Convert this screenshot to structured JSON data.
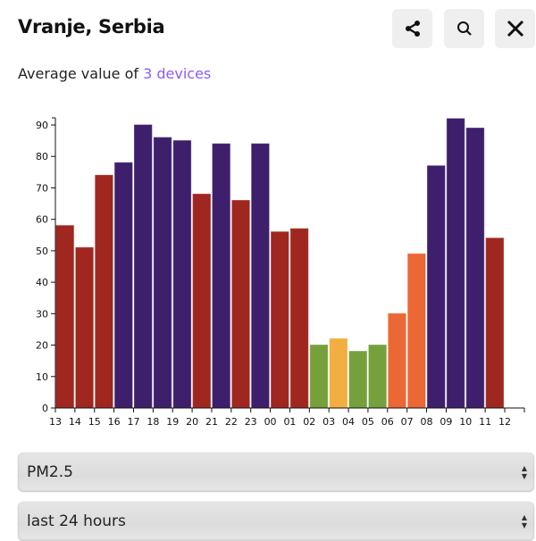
{
  "header": {
    "title": "Vranje, Serbia",
    "subtitle_prefix": "Average value of ",
    "devices_link": "3 devices"
  },
  "buttons": {
    "share": "share-icon",
    "search": "search-icon",
    "close": "close-icon"
  },
  "selects": {
    "pollutant": "PM2.5",
    "period": "last 24 hours"
  },
  "colors": {
    "red": "#a0271f",
    "purple": "#3e1f6c",
    "green": "#76a03c",
    "yellow": "#f2ae40",
    "orange": "#eb6834",
    "link": "#8a5cf6"
  },
  "chart_data": {
    "type": "bar",
    "categories": [
      "13",
      "14",
      "15",
      "16",
      "17",
      "18",
      "19",
      "20",
      "21",
      "22",
      "23",
      "00",
      "01",
      "02",
      "03",
      "04",
      "05",
      "06",
      "07",
      "08",
      "09",
      "10",
      "11"
    ],
    "x_tick_labels": [
      "13",
      "14",
      "15",
      "16",
      "17",
      "18",
      "19",
      "20",
      "21",
      "22",
      "23",
      "00",
      "01",
      "02",
      "03",
      "04",
      "05",
      "06",
      "07",
      "08",
      "09",
      "10",
      "11",
      "12"
    ],
    "values": [
      58,
      51,
      74,
      78,
      90,
      86,
      85,
      68,
      84,
      66,
      84,
      56,
      57,
      20,
      22,
      18,
      20,
      30,
      49,
      77,
      92,
      89,
      54
    ],
    "bar_colors": [
      "red",
      "red",
      "red",
      "purple",
      "purple",
      "purple",
      "purple",
      "red",
      "purple",
      "red",
      "purple",
      "red",
      "red",
      "green",
      "yellow",
      "green",
      "green",
      "orange",
      "orange",
      "purple",
      "purple",
      "purple",
      "red"
    ],
    "y_ticks": [
      "0",
      "10",
      "20",
      "30",
      "40",
      "50",
      "60",
      "70",
      "80",
      "90"
    ],
    "ylim": [
      0,
      92
    ],
    "xlabel": "",
    "ylabel": "",
    "title": ""
  }
}
